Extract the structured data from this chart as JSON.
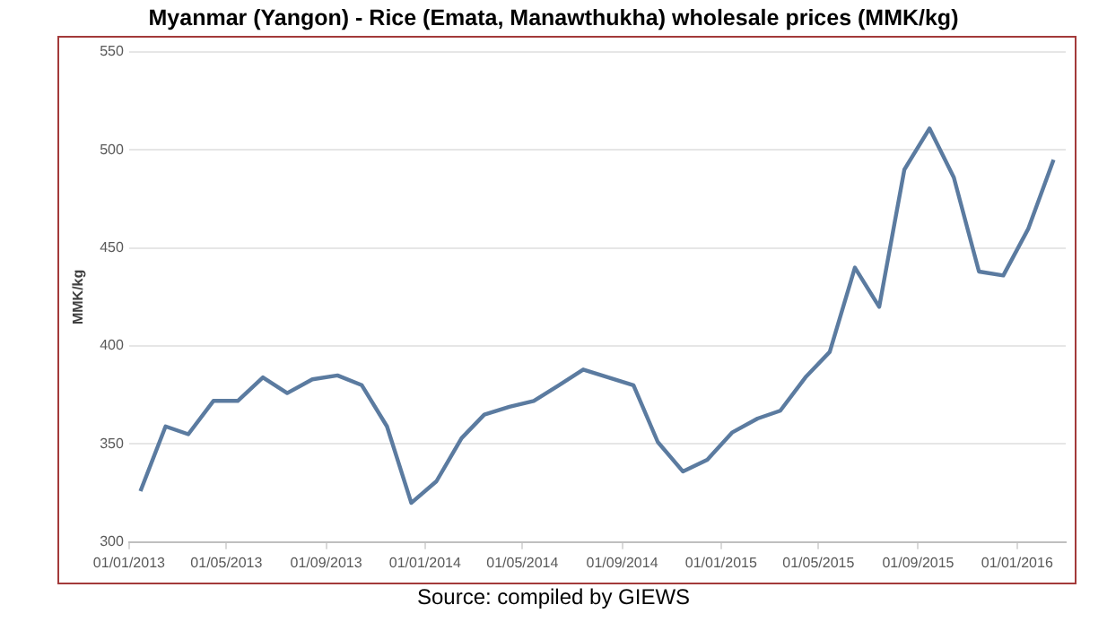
{
  "chart_data": {
    "type": "line",
    "title": "Myanmar (Yangon) - Rice (Emata, Manawthukha) wholesale prices (MMK/kg)",
    "ylabel": "MMK/kg",
    "x": [
      "2013-01-15",
      "2013-02-15",
      "2013-03-15",
      "2013-04-15",
      "2013-05-15",
      "2013-06-15",
      "2013-07-15",
      "2013-08-15",
      "2013-09-15",
      "2013-10-15",
      "2013-11-15",
      "2013-12-15",
      "2014-01-15",
      "2014-02-15",
      "2014-03-15",
      "2014-04-15",
      "2014-05-15",
      "2014-06-15",
      "2014-07-15",
      "2014-08-15",
      "2014-09-15",
      "2014-10-15",
      "2014-11-15",
      "2014-12-15",
      "2015-01-15",
      "2015-02-15",
      "2015-03-15",
      "2015-04-15",
      "2015-05-15",
      "2015-06-15",
      "2015-07-15",
      "2015-08-15",
      "2015-09-15",
      "2015-10-15",
      "2015-11-15",
      "2015-12-15",
      "2016-01-15",
      "2016-02-15"
    ],
    "series": [
      {
        "color": "#5b7ba0",
        "values": [
          326,
          359,
          355,
          372,
          372,
          384,
          376,
          383,
          385,
          380,
          359,
          320,
          331,
          353,
          365,
          369,
          372,
          380,
          388,
          384,
          380,
          351,
          336,
          342,
          356,
          363,
          367,
          384,
          397,
          440,
          420,
          490,
          511,
          486,
          438,
          436,
          460,
          495
        ]
      }
    ],
    "xlim": [
      "2013-01-01",
      "2016-03-01"
    ],
    "xticks": [
      {
        "value": "2013-01-01",
        "label": "01/01/2013"
      },
      {
        "value": "2013-05-01",
        "label": "01/05/2013"
      },
      {
        "value": "2013-09-01",
        "label": "01/09/2013"
      },
      {
        "value": "2014-01-01",
        "label": "01/01/2014"
      },
      {
        "value": "2014-05-01",
        "label": "01/05/2014"
      },
      {
        "value": "2014-09-01",
        "label": "01/09/2014"
      },
      {
        "value": "2015-01-01",
        "label": "01/01/2015"
      },
      {
        "value": "2015-05-01",
        "label": "01/05/2015"
      },
      {
        "value": "2015-09-01",
        "label": "01/09/2015"
      },
      {
        "value": "2016-01-01",
        "label": "01/01/2016"
      }
    ],
    "ylim": [
      300,
      550
    ],
    "yticks": [
      300,
      350,
      400,
      450,
      500,
      550
    ],
    "grid": "y",
    "legend": false,
    "marker": "none",
    "line_style": "solid",
    "annotations": [
      "Source: compiled by GIEWS"
    ]
  }
}
